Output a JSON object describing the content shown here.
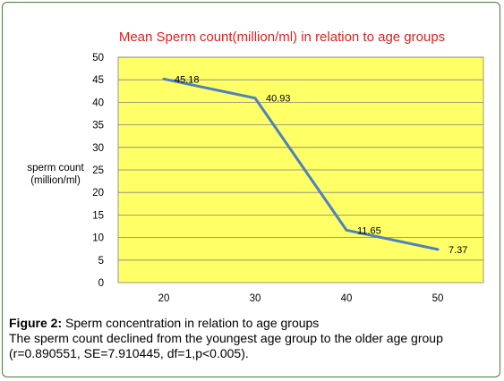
{
  "chart_data": {
    "type": "line",
    "title": "Mean Sperm count(million/ml) in relation to age groups",
    "ylabel_lines": [
      "sperm count",
      "(million/ml)"
    ],
    "xlabel": "",
    "x": [
      20,
      30,
      40,
      50
    ],
    "values": [
      45.18,
      40.93,
      11.65,
      7.37
    ],
    "data_labels": [
      "45.18",
      "40.93",
      "11.65",
      "7.37"
    ],
    "ylim": [
      0,
      50
    ],
    "yticks": [
      0,
      5,
      10,
      15,
      20,
      25,
      30,
      35,
      40,
      45,
      50
    ],
    "grid": true,
    "legend": "none",
    "colors": {
      "plot_bg": "#ffff66",
      "line": "#4f81bd",
      "title": "#e02020",
      "grid": "#808080"
    }
  },
  "caption": {
    "label": "Figure 2:",
    "title": " Sperm concentration in relation to age groups",
    "line2": "The sperm count declined from the youngest age group to the older age group",
    "line3": "(r=0.890551, SE=7.910445, df=1,p<0.005)."
  }
}
